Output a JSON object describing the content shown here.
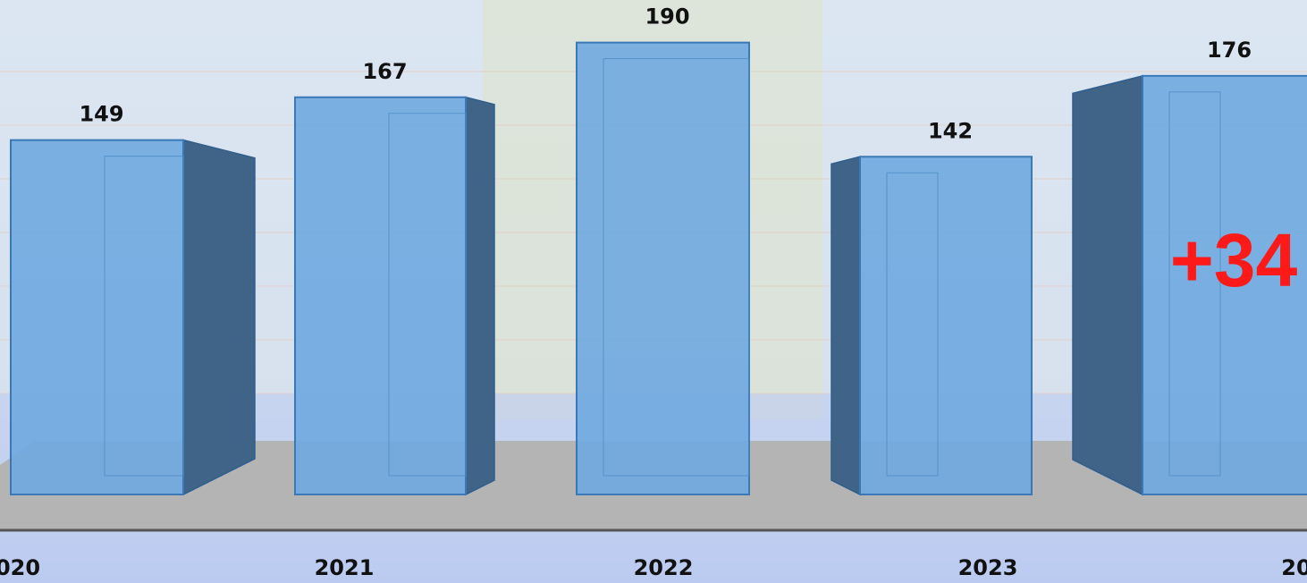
{
  "chart_data": {
    "type": "bar",
    "categories": [
      "020",
      "2021",
      "2022",
      "2023",
      "20"
    ],
    "values": [
      149,
      167,
      190,
      142,
      176
    ],
    "color": "#6fa8e0",
    "annotation": "+34"
  }
}
